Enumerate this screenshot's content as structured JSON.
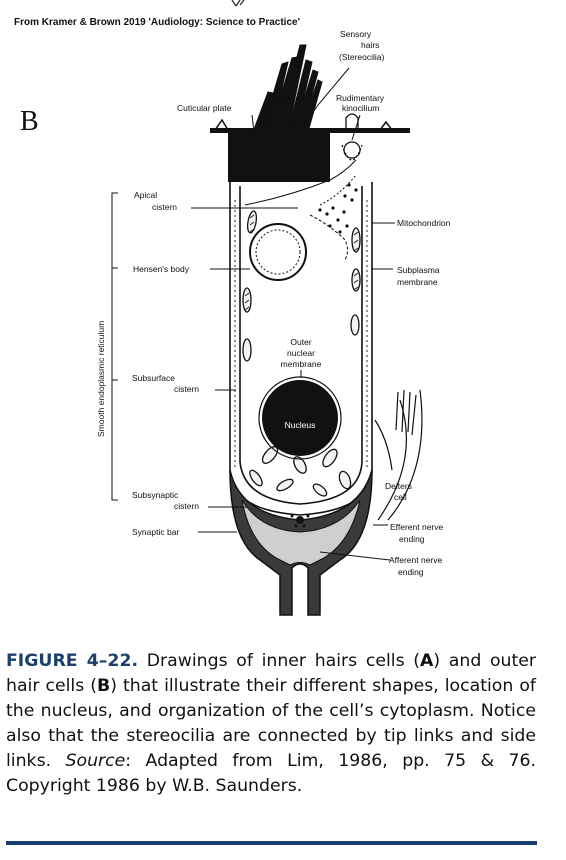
{
  "credit": "From Kramer & Brown 2019 'Audiology: Science to Practice'",
  "panel_letter": "B",
  "labels": {
    "sensory_hairs_1": "Sensory",
    "sensory_hairs_2": "hairs",
    "sensory_hairs_3": "(Stereocilia)",
    "cuticular_plate": "Cuticular plate",
    "rudimentary_1": "Rudimentary",
    "rudimentary_2": "kinocilium",
    "apical_1": "Apical",
    "apical_2": "cistern",
    "mitochondrion": "Mitochondrion",
    "hensens_body": "Hensen's body",
    "subplasma_1": "Subplasma",
    "subplasma_2": "membrane",
    "outer_nuclear_1": "Outer",
    "outer_nuclear_2": "nuclear",
    "outer_nuclear_3": "membrane",
    "subsurface_1": "Subsurface",
    "subsurface_2": "cistern",
    "nucleus": "Nucleus",
    "smooth_er": "Smooth endoplasmic reticulum",
    "deiters_1": "Deiters",
    "deiters_2": "cell",
    "subsynaptic_1": "Subsynaptic",
    "subsynaptic_2": "cistern",
    "synaptic_bar": "Synaptic bar",
    "efferent_1": "Efferent nerve",
    "efferent_2": "ending",
    "afferent_1": "Afferent nerve",
    "afferent_2": "ending"
  },
  "caption": {
    "figure_label": "FIGURE 4–22.",
    "t1": " Drawings of inner hairs cells (",
    "a": "A",
    "t2": ") and outer hair cells (",
    "b": "B",
    "t3": ") that illustrate their different shapes, location of the nucleus, and organization of the cell’s cytoplasm. Notice also that the stereocilia are connected by tip links and side links. ",
    "source_word": "Source",
    "t4": ": Adapted from Lim, 1986, pp. 75 & 76. Copyright 1986 by W.B. Saunders."
  }
}
